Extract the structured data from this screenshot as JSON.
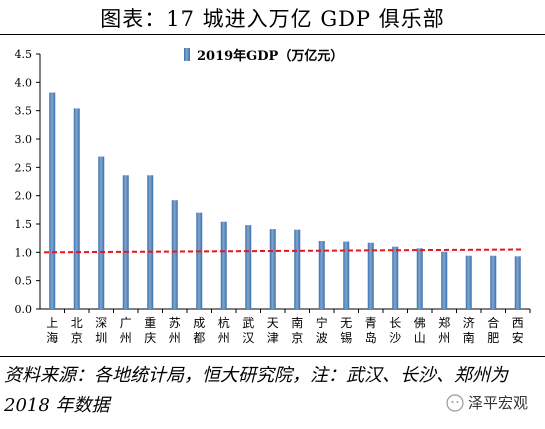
{
  "page": {
    "title": "图表：17 城进入万亿 GDP 俱乐部",
    "source": "资料来源：各地统计局，恒大研究院，注：武汉、长沙、郑州为 2018 年数据",
    "watermark": "泽平宏观"
  },
  "chart_data": {
    "type": "bar",
    "title": "",
    "xlabel": "",
    "ylabel": "",
    "ylim": [
      0,
      4.5
    ],
    "yticks": [
      "0.0",
      "0.5",
      "1.0",
      "1.5",
      "2.0",
      "2.5",
      "3.0",
      "3.5",
      "4.0",
      "4.5"
    ],
    "grid": false,
    "legend": "top-center",
    "categories": [
      "上海",
      "北京",
      "深圳",
      "广州",
      "重庆",
      "苏州",
      "成都",
      "杭州",
      "武汉",
      "天津",
      "南京",
      "宁波",
      "无锡",
      "青岛",
      "长沙",
      "佛山",
      "郑州",
      "济南",
      "合肥",
      "西安"
    ],
    "series": [
      {
        "name": "2019年GDP（万亿元）",
        "color": "#4f81bd",
        "values": [
          3.82,
          3.54,
          2.69,
          2.36,
          2.36,
          1.92,
          1.7,
          1.54,
          1.48,
          1.41,
          1.4,
          1.2,
          1.19,
          1.17,
          1.1,
          1.07,
          1.01,
          0.94,
          0.94,
          0.93
        ]
      }
    ],
    "reference_line": {
      "y": 1.0,
      "color": "#e8141b",
      "style": "dashed"
    }
  }
}
